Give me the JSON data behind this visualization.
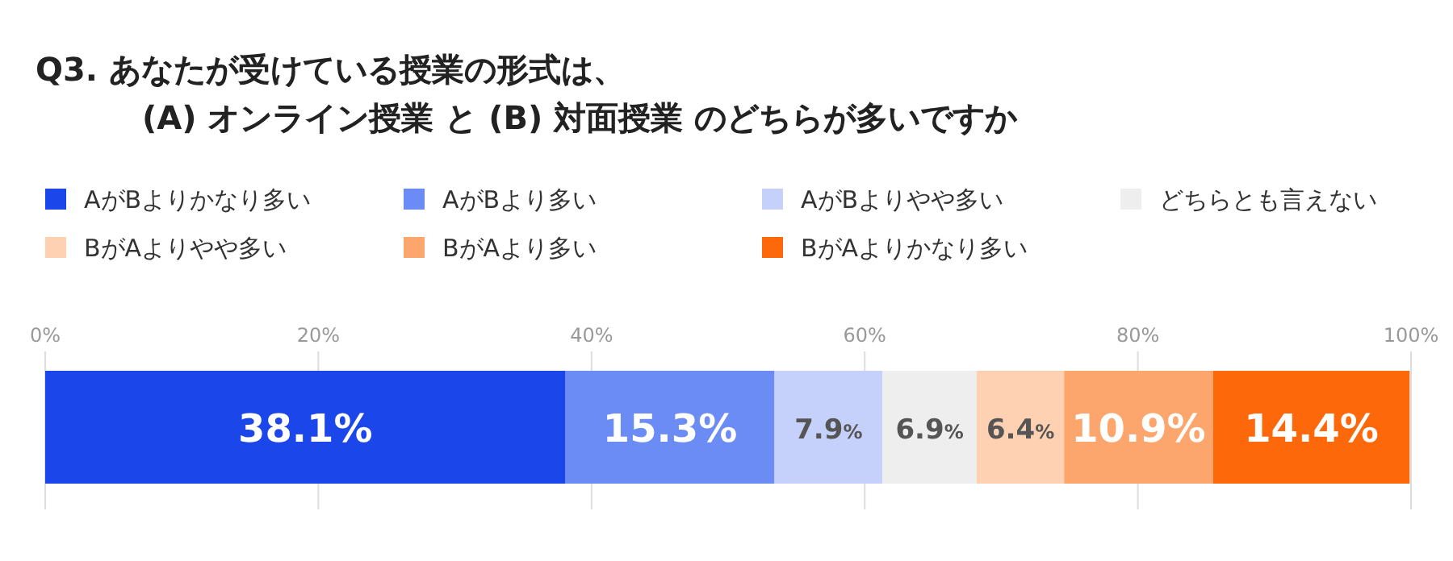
{
  "chart_data": {
    "type": "bar",
    "orientation": "horizontal",
    "stacked": true,
    "title": "Q3. あなたが受けている授業の形式は、\n(A) オンライン授業 と (B) 対面授業 のどちらが多いですか",
    "categories": [
      null
    ],
    "series": [
      {
        "name": "AがBよりかなり多い",
        "color": "#1b46ea",
        "values": [
          38.1
        ]
      },
      {
        "name": "AがBより多い",
        "color": "#6b8cf4",
        "values": [
          15.3
        ]
      },
      {
        "name": "AがBよりやや多い",
        "color": "#c6d1fb",
        "values": [
          7.9
        ]
      },
      {
        "name": "どちらとも言えない",
        "color": "#eeeeee",
        "values": [
          6.9
        ]
      },
      {
        "name": "BがAよりやや多い",
        "color": "#fdd1b2",
        "values": [
          6.4
        ]
      },
      {
        "name": "BがAより多い",
        "color": "#fca56c",
        "values": [
          10.9
        ]
      },
      {
        "name": "BがAよりかなり多い",
        "color": "#fd680a",
        "values": [
          14.4
        ]
      }
    ],
    "xlim": [
      0,
      100
    ],
    "xticks": [
      {
        "value": 0,
        "label": "0%"
      },
      {
        "value": 20,
        "label": "20%"
      },
      {
        "value": 40,
        "label": "40%"
      },
      {
        "value": 60,
        "label": "60%"
      },
      {
        "value": 80,
        "label": "80%"
      },
      {
        "value": 100,
        "label": "100%"
      }
    ],
    "value_labels": [
      "38.1%",
      "15.3%",
      "7.9%",
      "6.9%",
      "6.4%",
      "10.9%",
      "14.4%"
    ],
    "tick_labels": "x",
    "grid": "x",
    "legend": "top"
  }
}
